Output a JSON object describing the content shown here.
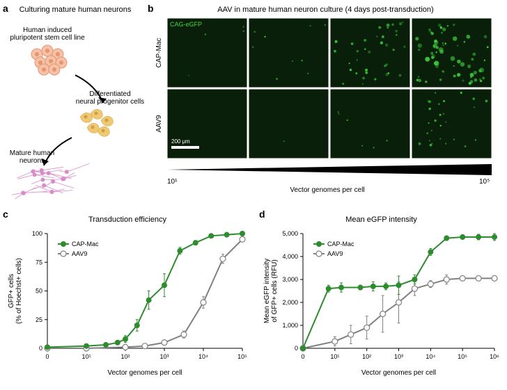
{
  "panel_a": {
    "label": "a",
    "title": "Culturing mature human neurons",
    "step1": "Human induced\npluripotent stem cell line",
    "step2": "Differentiated\nneural progenitor cells",
    "step3": "Mature human\nneurons",
    "colors": {
      "ipsc": "#f4c2a8",
      "ipsc_border": "#e8956f",
      "progenitor": "#f0c86f",
      "neuron": "#d98cc9"
    }
  },
  "panel_b": {
    "label": "b",
    "title": "AAV in mature human neuron culture (4 days post-transduction)",
    "overlay_text": "CAG-eGFP",
    "row_labels": [
      "CAP-Mac",
      "AAV9"
    ],
    "scalebar_label": "200 μm",
    "x_axis_label": "Vector genomes per cell",
    "x_min_tick": "10¹",
    "x_max_tick": "10⁵",
    "colors": {
      "background": "#0a1f0a",
      "signal": "#3fd83f",
      "scalebar": "#ffffff",
      "overlay_text": "#3fd83f"
    },
    "intensity_grid": [
      [
        0.05,
        0.12,
        0.45,
        0.85
      ],
      [
        0.01,
        0.02,
        0.08,
        0.35
      ]
    ]
  },
  "panel_c": {
    "label": "c",
    "title": "Transduction efficiency",
    "x_label": "Vector genomes per cell",
    "y_label": "GFP+ cells\n(% of Hoechst+ cells)",
    "x_ticks": [
      "0",
      "10¹",
      "10²",
      "10³",
      "10⁴",
      "10⁵"
    ],
    "y_ticks": [
      0,
      25,
      50,
      75,
      100
    ],
    "ylim": [
      0,
      100
    ],
    "legend": [
      {
        "name": "CAP-Mac",
        "color": "#2e8b2e",
        "marker": "filled"
      },
      {
        "name": "AAV9",
        "color": "#808080",
        "marker": "open"
      }
    ],
    "series": {
      "capmac": {
        "color": "#2e8b2e",
        "points": [
          {
            "xi": 0,
            "y": 1,
            "err": 1
          },
          {
            "xi": 1,
            "y": 2,
            "err": 1
          },
          {
            "xi": 1.5,
            "y": 3,
            "err": 1
          },
          {
            "xi": 1.8,
            "y": 5,
            "err": 2
          },
          {
            "xi": 2.0,
            "y": 8,
            "err": 3
          },
          {
            "xi": 2.3,
            "y": 20,
            "err": 5
          },
          {
            "xi": 2.6,
            "y": 42,
            "err": 8
          },
          {
            "xi": 3.0,
            "y": 55,
            "err": 10
          },
          {
            "xi": 3.4,
            "y": 85,
            "err": 3
          },
          {
            "xi": 3.8,
            "y": 92,
            "err": 2
          },
          {
            "xi": 4.2,
            "y": 98,
            "err": 1
          },
          {
            "xi": 4.6,
            "y": 99,
            "err": 1
          },
          {
            "xi": 5.0,
            "y": 100,
            "err": 1
          }
        ]
      },
      "aav9": {
        "color": "#808080",
        "points": [
          {
            "xi": 0,
            "y": 0,
            "err": 0
          },
          {
            "xi": 1,
            "y": 0,
            "err": 0
          },
          {
            "xi": 2.0,
            "y": 1,
            "err": 0
          },
          {
            "xi": 2.5,
            "y": 2,
            "err": 1
          },
          {
            "xi": 3.0,
            "y": 5,
            "err": 2
          },
          {
            "xi": 3.5,
            "y": 12,
            "err": 3
          },
          {
            "xi": 4.0,
            "y": 40,
            "err": 5
          },
          {
            "xi": 4.5,
            "y": 78,
            "err": 4
          },
          {
            "xi": 5.0,
            "y": 95,
            "err": 2
          }
        ]
      }
    },
    "styling": {
      "background": "#ffffff",
      "axis_color": "#000000",
      "marker_size": 4,
      "line_width": 2,
      "font_size": 10
    }
  },
  "panel_d": {
    "label": "d",
    "title": "Mean eGFP intensity",
    "x_label": "Vector genomes per cell",
    "y_label": "Mean eGFP intensity\nof GFP+ cells (RFU)",
    "x_ticks": [
      "0",
      "10¹",
      "10²",
      "10³",
      "10⁴",
      "10⁵",
      "10⁶"
    ],
    "y_ticks": [
      0,
      1000,
      2000,
      3000,
      4000,
      5000
    ],
    "ylim": [
      0,
      5000
    ],
    "legend": [
      {
        "name": "CAP-Mac",
        "color": "#2e8b2e",
        "marker": "filled"
      },
      {
        "name": "AAV9",
        "color": "#808080",
        "marker": "open"
      }
    ],
    "series": {
      "capmac": {
        "color": "#2e8b2e",
        "points": [
          {
            "xi": 0,
            "y": 0,
            "err": 0
          },
          {
            "xi": 0.8,
            "y": 2600,
            "err": 150
          },
          {
            "xi": 1.2,
            "y": 2650,
            "err": 200
          },
          {
            "xi": 1.8,
            "y": 2650,
            "err": 100
          },
          {
            "xi": 2.2,
            "y": 2700,
            "err": 200
          },
          {
            "xi": 2.6,
            "y": 2700,
            "err": 150
          },
          {
            "xi": 3.0,
            "y": 2750,
            "err": 400
          },
          {
            "xi": 3.5,
            "y": 3000,
            "err": 200
          },
          {
            "xi": 4.0,
            "y": 4200,
            "err": 150
          },
          {
            "xi": 4.5,
            "y": 4800,
            "err": 100
          },
          {
            "xi": 5.0,
            "y": 4850,
            "err": 100
          },
          {
            "xi": 5.5,
            "y": 4850,
            "err": 120
          },
          {
            "xi": 6.0,
            "y": 4850,
            "err": 150
          }
        ]
      },
      "aav9": {
        "color": "#808080",
        "points": [
          {
            "xi": 0,
            "y": 0,
            "err": 0
          },
          {
            "xi": 1.0,
            "y": 300,
            "err": 200
          },
          {
            "xi": 1.5,
            "y": 600,
            "err": 400
          },
          {
            "xi": 2.0,
            "y": 900,
            "err": 500
          },
          {
            "xi": 2.5,
            "y": 1500,
            "err": 800
          },
          {
            "xi": 3.0,
            "y": 2000,
            "err": 900
          },
          {
            "xi": 3.5,
            "y": 2600,
            "err": 300
          },
          {
            "xi": 4.0,
            "y": 2800,
            "err": 150
          },
          {
            "xi": 4.5,
            "y": 3000,
            "err": 200
          },
          {
            "xi": 5.0,
            "y": 3050,
            "err": 100
          },
          {
            "xi": 5.5,
            "y": 3050,
            "err": 100
          },
          {
            "xi": 6.0,
            "y": 3050,
            "err": 100
          }
        ]
      }
    },
    "styling": {
      "background": "#ffffff",
      "axis_color": "#000000",
      "marker_size": 4,
      "line_width": 2,
      "font_size": 10
    }
  }
}
